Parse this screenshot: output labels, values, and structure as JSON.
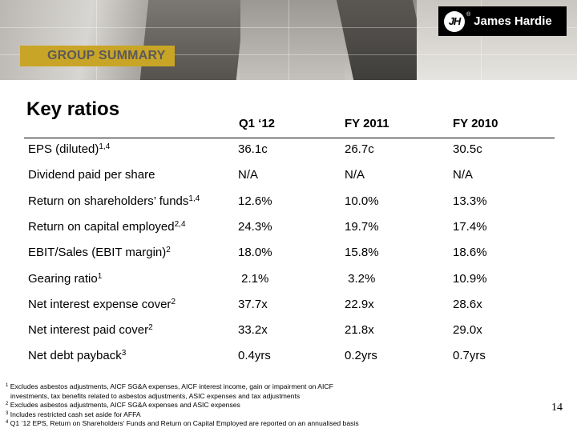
{
  "brand": {
    "name": "James Hardie",
    "mark": "JH",
    "registered": "®"
  },
  "banner": {
    "label": "GROUP SUMMARY",
    "color": "#c9a527"
  },
  "title": "Key ratios",
  "table": {
    "columns": [
      "Q1 ‘12",
      "FY 2011",
      "FY 2010"
    ],
    "rows": [
      {
        "label": "EPS (diluted)",
        "sup": "1,4",
        "values": [
          "36.1c",
          "26.7c",
          "30.5c"
        ]
      },
      {
        "label": "Dividend paid per share",
        "sup": "",
        "values": [
          "N/A",
          "N/A",
          "N/A"
        ]
      },
      {
        "label": "Return on shareholders’ funds",
        "sup": "1,4",
        "values": [
          "12.6%",
          "10.0%",
          "13.3%"
        ]
      },
      {
        "label": "Return on capital employed",
        "sup": "2,4",
        "values": [
          "24.3%",
          "19.7%",
          "17.4%"
        ]
      },
      {
        "label": "EBIT/Sales (EBIT margin)",
        "sup": "2",
        "values": [
          "18.0%",
          "15.8%",
          "18.6%"
        ]
      },
      {
        "label": "Gearing ratio",
        "sup": "1",
        "values": [
          " 2.1%",
          " 3.2%",
          "10.9%"
        ]
      },
      {
        "label": "Net interest expense cover",
        "sup": "2",
        "values": [
          "37.7x",
          "22.9x",
          "28.6x"
        ]
      },
      {
        "label": "Net interest paid cover",
        "sup": "2",
        "values": [
          "33.2x",
          "21.8x",
          "29.0x"
        ]
      },
      {
        "label": "Net debt payback",
        "sup": "3",
        "values": [
          "0.4yrs",
          "0.2yrs",
          "0.7yrs"
        ]
      }
    ]
  },
  "footnotes": [
    {
      "num": "1",
      "lines": [
        "Excludes asbestos adjustments, AICF SG&A expenses, AICF interest income, gain or impairment on AICF",
        "investments, tax benefits related to asbestos adjustments, ASIC expenses and tax adjustments"
      ]
    },
    {
      "num": "2",
      "lines": [
        "Excludes asbestos adjustments, AICF SG&A expenses and ASIC expenses"
      ]
    },
    {
      "num": "3",
      "lines": [
        "Includes restricted cash set aside for AFFA"
      ]
    },
    {
      "num": "4",
      "lines": [
        "Q1 ‘12 EPS, Return on Shareholders’ Funds and Return on Capital Employed are reported on an annualised basis"
      ]
    }
  ],
  "page_number": "14"
}
